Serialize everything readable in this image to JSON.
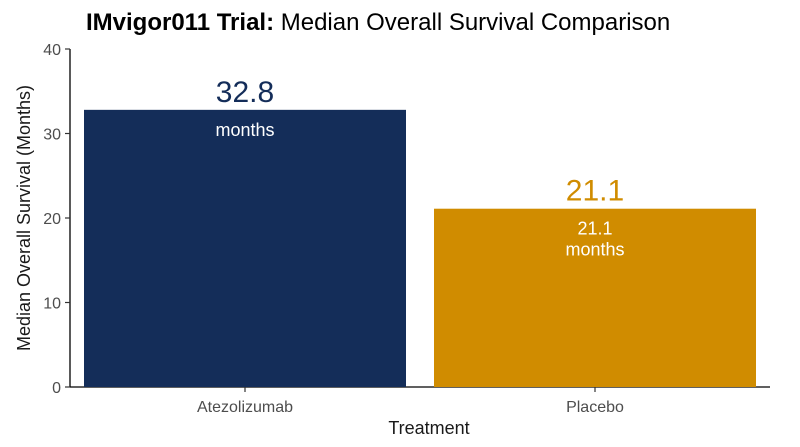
{
  "chart_data": {
    "type": "bar",
    "title_bold": "IMvigor011 Trial:",
    "title_rest": " Median Overall Survival Comparison",
    "xlabel": "Treatment",
    "ylabel": "Median Overall Survival (Months)",
    "categories": [
      "Atezolizumab",
      "Placebo"
    ],
    "values": [
      32.8,
      21.1
    ],
    "ylim": [
      0,
      40
    ],
    "yticks": [
      0,
      10,
      20,
      30,
      40
    ],
    "bar_colors": [
      "#142d59",
      "#d08c00"
    ],
    "value_labels": [
      "32.8",
      "21.1"
    ],
    "inner_labels": [
      [
        "months"
      ],
      [
        "21.1",
        "months"
      ]
    ],
    "grid": false,
    "legend": "none"
  }
}
